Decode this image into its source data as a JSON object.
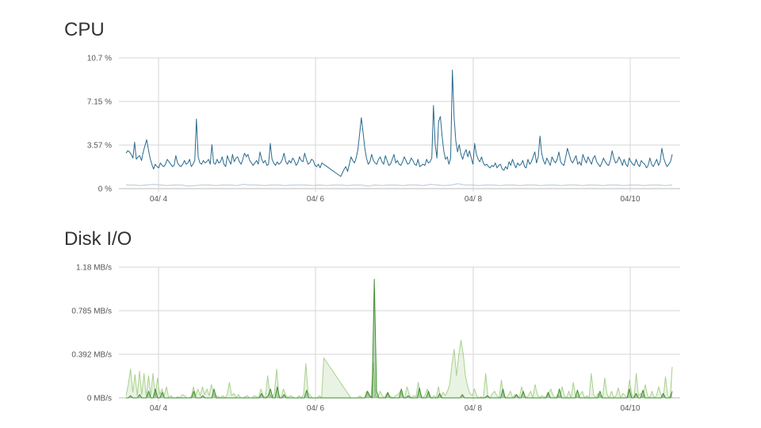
{
  "page": {
    "cpu_title": "CPU",
    "disk_title": "Disk I/O"
  },
  "chart_data": [
    {
      "type": "line",
      "title": "CPU",
      "xlabel": "",
      "ylabel": "",
      "x_start": "04/3 14:00",
      "x_end": "04/10 13:00",
      "x_ticks": [
        "04/ 4",
        "04/ 6",
        "04/ 8",
        "04/10"
      ],
      "y_ticks": [
        "0 %",
        "3.57 %",
        "7.15 %",
        "10.7 %"
      ],
      "ylim": [
        0,
        10.7
      ],
      "grid": true,
      "colors": [
        "#2a6a8e",
        "#b8c6d4"
      ],
      "series": [
        {
          "name": "",
          "values": [
            2.9,
            3.1,
            3.0,
            2.8,
            2.5,
            3.8,
            2.4,
            2.6,
            2.7,
            2.3,
            3.0,
            3.5,
            4.0,
            3.2,
            2.5,
            2.0,
            1.6,
            2.0,
            1.8,
            1.7,
            2.1,
            1.9,
            1.8,
            2.0,
            2.4,
            2.2,
            2.0,
            1.8,
            1.9,
            2.7,
            2.1,
            1.9,
            1.8,
            2.0,
            2.3,
            2.0,
            2.1,
            2.4,
            1.8,
            2.0,
            2.3,
            5.7,
            2.6,
            2.1,
            2.0,
            2.3,
            2.1,
            2.2,
            2.4,
            2.0,
            3.6,
            2.1,
            2.0,
            2.4,
            2.1,
            2.2,
            2.6,
            2.0,
            1.8,
            2.7,
            2.3,
            2.0,
            2.8,
            2.2,
            2.5,
            2.6,
            2.2,
            2.0,
            2.4,
            2.9,
            2.6,
            2.8,
            2.3,
            2.1,
            1.9,
            2.1,
            2.3,
            2.0,
            3.0,
            2.4,
            2.1,
            2.3,
            1.9,
            2.0,
            3.7,
            2.4,
            2.1,
            1.9,
            2.2,
            2.0,
            2.1,
            2.4,
            2.9,
            2.2,
            2.0,
            2.3,
            2.1,
            2.5,
            2.3,
            1.9,
            2.1,
            2.6,
            2.3,
            2.2,
            2.9,
            2.4,
            2.0,
            2.1,
            2.4,
            2.3,
            1.9,
            1.8,
            2.0,
            1.7,
            2.1,
            2.0,
            1.9,
            1.8,
            1.7,
            1.6,
            1.5,
            1.4,
            1.3,
            1.2,
            1.1,
            1.0,
            1.3,
            1.6,
            1.8,
            1.4,
            2.0,
            2.6,
            2.3,
            2.1,
            2.5,
            3.2,
            4.5,
            5.8,
            4.6,
            3.3,
            2.5,
            2.0,
            2.2,
            2.8,
            2.3,
            2.1,
            2.0,
            2.4,
            2.6,
            2.2,
            2.0,
            2.7,
            2.3,
            1.9,
            2.0,
            2.4,
            2.8,
            2.1,
            2.3,
            2.0,
            1.9,
            2.2,
            2.6,
            2.3,
            2.0,
            2.1,
            2.5,
            2.3,
            2.0,
            1.9,
            2.4,
            1.8,
            1.9,
            2.0,
            1.9,
            2.4,
            2.1,
            2.2,
            2.5,
            6.8,
            3.6,
            2.5,
            5.5,
            5.9,
            4.3,
            3.1,
            2.4,
            2.6,
            2.0,
            2.5,
            9.7,
            5.9,
            3.9,
            3.0,
            3.6,
            2.8,
            2.4,
            2.9,
            3.2,
            2.6,
            3.1,
            2.5,
            2.0,
            3.7,
            2.8,
            2.4,
            2.2,
            2.6,
            2.1,
            1.9,
            2.0,
            1.8,
            1.7,
            1.9,
            1.8,
            2.1,
            1.7,
            1.9,
            2.0,
            1.6,
            1.5,
            1.8,
            1.6,
            2.2,
            1.9,
            2.4,
            2.0,
            1.7,
            2.1,
            1.9,
            2.0,
            2.3,
            1.8,
            1.7,
            2.4,
            2.0,
            2.2,
            2.6,
            3.0,
            2.1,
            2.6,
            4.3,
            2.9,
            2.3,
            2.0,
            2.5,
            2.2,
            1.9,
            2.6,
            2.3,
            2.1,
            2.4,
            3.0,
            2.2,
            2.0,
            1.9,
            2.6,
            3.3,
            2.8,
            2.3,
            2.1,
            2.4,
            2.7,
            2.0,
            2.2,
            1.9,
            2.8,
            2.4,
            2.1,
            2.6,
            2.3,
            2.0,
            2.5,
            2.7,
            2.2,
            2.0,
            1.8,
            2.1,
            2.5,
            2.2,
            2.0,
            1.9,
            2.3,
            3.1,
            2.5,
            2.1,
            2.2,
            2.6,
            2.3,
            1.9,
            2.4,
            2.0,
            1.8,
            2.5,
            2.2,
            2.0,
            1.9,
            2.4,
            2.0,
            1.8,
            2.3,
            2.1,
            2.0,
            1.7,
            1.9,
            2.5,
            2.0,
            1.8,
            2.1,
            2.4,
            1.9,
            2.2,
            3.3,
            2.5,
            2.1,
            1.8,
            2.0,
            2.2,
            2.8
          ]
        },
        {
          "name": "",
          "values": [
            0.3,
            0.3,
            0.25,
            0.3,
            0.35,
            0.3,
            0.25,
            0.3,
            0.3,
            0.2,
            0.25,
            0.3,
            0.3,
            0.25,
            0.3,
            0.3,
            0.25,
            0.35,
            0.3,
            0.3,
            0.25,
            0.3,
            0.3,
            0.25,
            0.3,
            0.3,
            0.3,
            0.25,
            0.3,
            0.25,
            0.3,
            0.3,
            0.25,
            0.3,
            0.3,
            0.2,
            0.3,
            0.25,
            0.3,
            0.3,
            0.25,
            0.3,
            0.3,
            0.25,
            0.35,
            0.3,
            0.25,
            0.3,
            0.4,
            0.3,
            0.3,
            0.25,
            0.3,
            0.3,
            0.25,
            0.3,
            0.3,
            0.25,
            0.3,
            0.3,
            0.25,
            0.3,
            0.3,
            0.25,
            0.3,
            0.3,
            0.25,
            0.3,
            0.3,
            0.25,
            0.3,
            0.3,
            0.25,
            0.3,
            0.3,
            0.25,
            0.3,
            0.3,
            0.25,
            0.3
          ]
        }
      ]
    },
    {
      "type": "area",
      "title": "Disk I/O",
      "xlabel": "",
      "ylabel": "",
      "x_start": "04/3 14:00",
      "x_end": "04/10 13:00",
      "x_ticks": [
        "04/ 4",
        "04/ 6",
        "04/ 8",
        "04/10"
      ],
      "y_ticks": [
        "0 MB/s",
        "0.392 MB/s",
        "0.785 MB/s",
        "1.18 MB/s"
      ],
      "ylim": [
        0,
        1.18
      ],
      "grid": true,
      "colors": [
        "#a9d18e",
        "#3e8e2f"
      ],
      "series": [
        {
          "name": "",
          "values": [
            0.02,
            0.12,
            0.26,
            0.05,
            0.21,
            0.02,
            0.24,
            0.03,
            0.22,
            0.01,
            0.2,
            0.02,
            0.22,
            0.01,
            0.18,
            0.03,
            0.08,
            0.02,
            0.1,
            0.0,
            0.02,
            0.0,
            0.0,
            0.01,
            0.0,
            0.03,
            0.02,
            0.0,
            0.0,
            0.01,
            0.1,
            0.02,
            0.08,
            0.02,
            0.1,
            0.03,
            0.08,
            0.02,
            0.12,
            0.03,
            0.02,
            0.01,
            0.0,
            0.02,
            0.0,
            0.03,
            0.14,
            0.02,
            0.04,
            0.0,
            0.03,
            0.0,
            0.0,
            0.01,
            0.02,
            0.0,
            0.0,
            0.02,
            0.01,
            0.0,
            0.08,
            0.02,
            0.0,
            0.2,
            0.03,
            0.0,
            0.04,
            0.26,
            0.02,
            0.0,
            0.08,
            0.03,
            0.0,
            0.02,
            0.01,
            0.0,
            0.0,
            0.02,
            0.0,
            0.03,
            0.31,
            0.05,
            0.02,
            0.0,
            0.0,
            0.0,
            0.02,
            0.0,
            0.36,
            0.33,
            0.3,
            0.27,
            0.24,
            0.21,
            0.18,
            0.15,
            0.12,
            0.09,
            0.06,
            0.03,
            0.0,
            0.0,
            0.0,
            0.0,
            0.02,
            0.0,
            0.0,
            0.06,
            0.02,
            0.0,
            0.32,
            0.02,
            0.0,
            0.06,
            0.02,
            0.0,
            0.04,
            0.02,
            0.01,
            0.0,
            0.02,
            0.03,
            0.06,
            0.02,
            0.0,
            0.1,
            0.03,
            0.0,
            0.02,
            0.01,
            0.14,
            0.03,
            0.0,
            0.02,
            0.08,
            0.01,
            0.0,
            0.02,
            0.0,
            0.1,
            0.0,
            0.05,
            0.02,
            0.06,
            0.12,
            0.3,
            0.44,
            0.2,
            0.38,
            0.52,
            0.4,
            0.2,
            0.1,
            0.04,
            0.02,
            0.08,
            0.02,
            0.0,
            0.01,
            0.0,
            0.22,
            0.02,
            0.0,
            0.04,
            0.06,
            0.02,
            0.0,
            0.16,
            0.02,
            0.0,
            0.02,
            0.06,
            0.0,
            0.03,
            0.02,
            0.0,
            0.1,
            0.03,
            0.0,
            0.02,
            0.06,
            0.0,
            0.12,
            0.03,
            0.0,
            0.02,
            0.01,
            0.0,
            0.04,
            0.08,
            0.02,
            0.0,
            0.03,
            0.0,
            0.1,
            0.02,
            0.0,
            0.06,
            0.0,
            0.14,
            0.02,
            0.0,
            0.03,
            0.06,
            0.0,
            0.02,
            0.0,
            0.22,
            0.03,
            0.0,
            0.04,
            0.02,
            0.0,
            0.18,
            0.03,
            0.0,
            0.06,
            0.0,
            0.02,
            0.09,
            0.0,
            0.04,
            0.02,
            0.0,
            0.16,
            0.03,
            0.0,
            0.22,
            0.02,
            0.04,
            0.0,
            0.12,
            0.02,
            0.0,
            0.06,
            0.0,
            0.02,
            0.1,
            0.03,
            0.0,
            0.19,
            0.02,
            0.0,
            0.28
          ]
        },
        {
          "name": "",
          "values": [
            0.0,
            0.0,
            0.02,
            0.0,
            0.0,
            0.0,
            0.03,
            0.0,
            0.0,
            0.0,
            0.06,
            0.0,
            0.0,
            0.08,
            0.0,
            0.0,
            0.05,
            0.0,
            0.0,
            0.0,
            0.0,
            0.0,
            0.0,
            0.0,
            0.0,
            0.0,
            0.0,
            0.0,
            0.0,
            0.0,
            0.06,
            0.0,
            0.0,
            0.0,
            0.02,
            0.0,
            0.0,
            0.0,
            0.0,
            0.08,
            0.0,
            0.0,
            0.0,
            0.0,
            0.0,
            0.0,
            0.0,
            0.0,
            0.0,
            0.0,
            0.0,
            0.0,
            0.0,
            0.0,
            0.0,
            0.0,
            0.0,
            0.0,
            0.0,
            0.0,
            0.04,
            0.0,
            0.0,
            0.02,
            0.08,
            0.0,
            0.0,
            0.1,
            0.0,
            0.0,
            0.03,
            0.0,
            0.0,
            0.0,
            0.0,
            0.0,
            0.0,
            0.0,
            0.0,
            0.0,
            0.07,
            0.0,
            0.0,
            0.0,
            0.0,
            0.0,
            0.0,
            0.0,
            0.0,
            0.0,
            0.0,
            0.0,
            0.0,
            0.0,
            0.0,
            0.0,
            0.0,
            0.0,
            0.0,
            0.0,
            0.0,
            0.0,
            0.0,
            0.0,
            0.0,
            0.0,
            0.0,
            0.06,
            0.02,
            0.0,
            1.07,
            0.06,
            0.0,
            0.0,
            0.0,
            0.0,
            0.05,
            0.0,
            0.0,
            0.0,
            0.0,
            0.0,
            0.08,
            0.0,
            0.0,
            0.02,
            0.0,
            0.0,
            0.0,
            0.0,
            0.09,
            0.0,
            0.0,
            0.0,
            0.06,
            0.0,
            0.0,
            0.0,
            0.0,
            0.04,
            0.0,
            0.0,
            0.0,
            0.0,
            0.0,
            0.0,
            0.0,
            0.0,
            0.0,
            0.03,
            0.0,
            0.0,
            0.0,
            0.0,
            0.0,
            0.0,
            0.0,
            0.0,
            0.0,
            0.0,
            0.02,
            0.0,
            0.0,
            0.0,
            0.0,
            0.0,
            0.0,
            0.08,
            0.0,
            0.0,
            0.0,
            0.0,
            0.0,
            0.03,
            0.0,
            0.0,
            0.06,
            0.0,
            0.0,
            0.0,
            0.0,
            0.0,
            0.0,
            0.0,
            0.0,
            0.0,
            0.0,
            0.05,
            0.0,
            0.0,
            0.0,
            0.0,
            0.08,
            0.0,
            0.0,
            0.0,
            0.0,
            0.0,
            0.0,
            0.0,
            0.07,
            0.0,
            0.0,
            0.0,
            0.0,
            0.0,
            0.0,
            0.0,
            0.0,
            0.0,
            0.06,
            0.0,
            0.0,
            0.0,
            0.0,
            0.0,
            0.0,
            0.0,
            0.0,
            0.0,
            0.0,
            0.0,
            0.0,
            0.08,
            0.0,
            0.0,
            0.04,
            0.0,
            0.0,
            0.07,
            0.0,
            0.0,
            0.0,
            0.0,
            0.0,
            0.0,
            0.0,
            0.0,
            0.04,
            0.0,
            0.0,
            0.0,
            0.06
          ]
        }
      ]
    }
  ]
}
